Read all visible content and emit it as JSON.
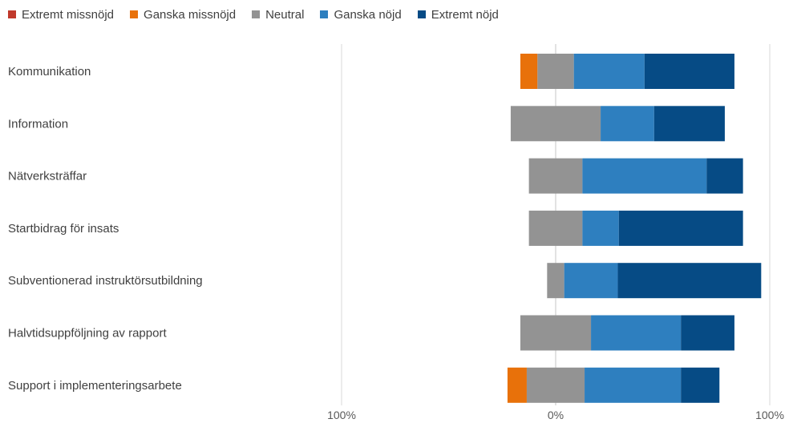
{
  "chart_data": {
    "type": "bar",
    "orientation": "horizontal",
    "stacked": "diverging",
    "categories": [
      "Kommunikation",
      "Information",
      "Nätverksträffar",
      "Startbidrag för insats",
      "Subventionerad instruktörsutbildning",
      "Halvtidsuppföljning av rapport",
      "Support i implementeringsarbete"
    ],
    "series": [
      {
        "name": "Extremt missnöjd",
        "color": "#c0392b",
        "values": [
          0,
          0,
          0,
          0,
          0,
          0,
          0
        ]
      },
      {
        "name": "Ganska missnöjd",
        "color": "#e8710a",
        "values": [
          8,
          0,
          0,
          0,
          0,
          0,
          9
        ]
      },
      {
        "name": "Neutral",
        "color": "#939393",
        "values": [
          17,
          42,
          25,
          25,
          8,
          33,
          27
        ]
      },
      {
        "name": "Ganska nöjd",
        "color": "#2e7fbf",
        "values": [
          33,
          25,
          58,
          17,
          25,
          42,
          45
        ]
      },
      {
        "name": "Extremt nöjd",
        "color": "#064b85",
        "values": [
          42,
          33,
          17,
          58,
          67,
          25,
          18
        ]
      }
    ],
    "neutral_split": "center",
    "xlim": [
      -100,
      100
    ],
    "x_ticks": [
      "100%",
      "0%",
      "100%"
    ],
    "grid": true,
    "legend_position": "top-left"
  }
}
